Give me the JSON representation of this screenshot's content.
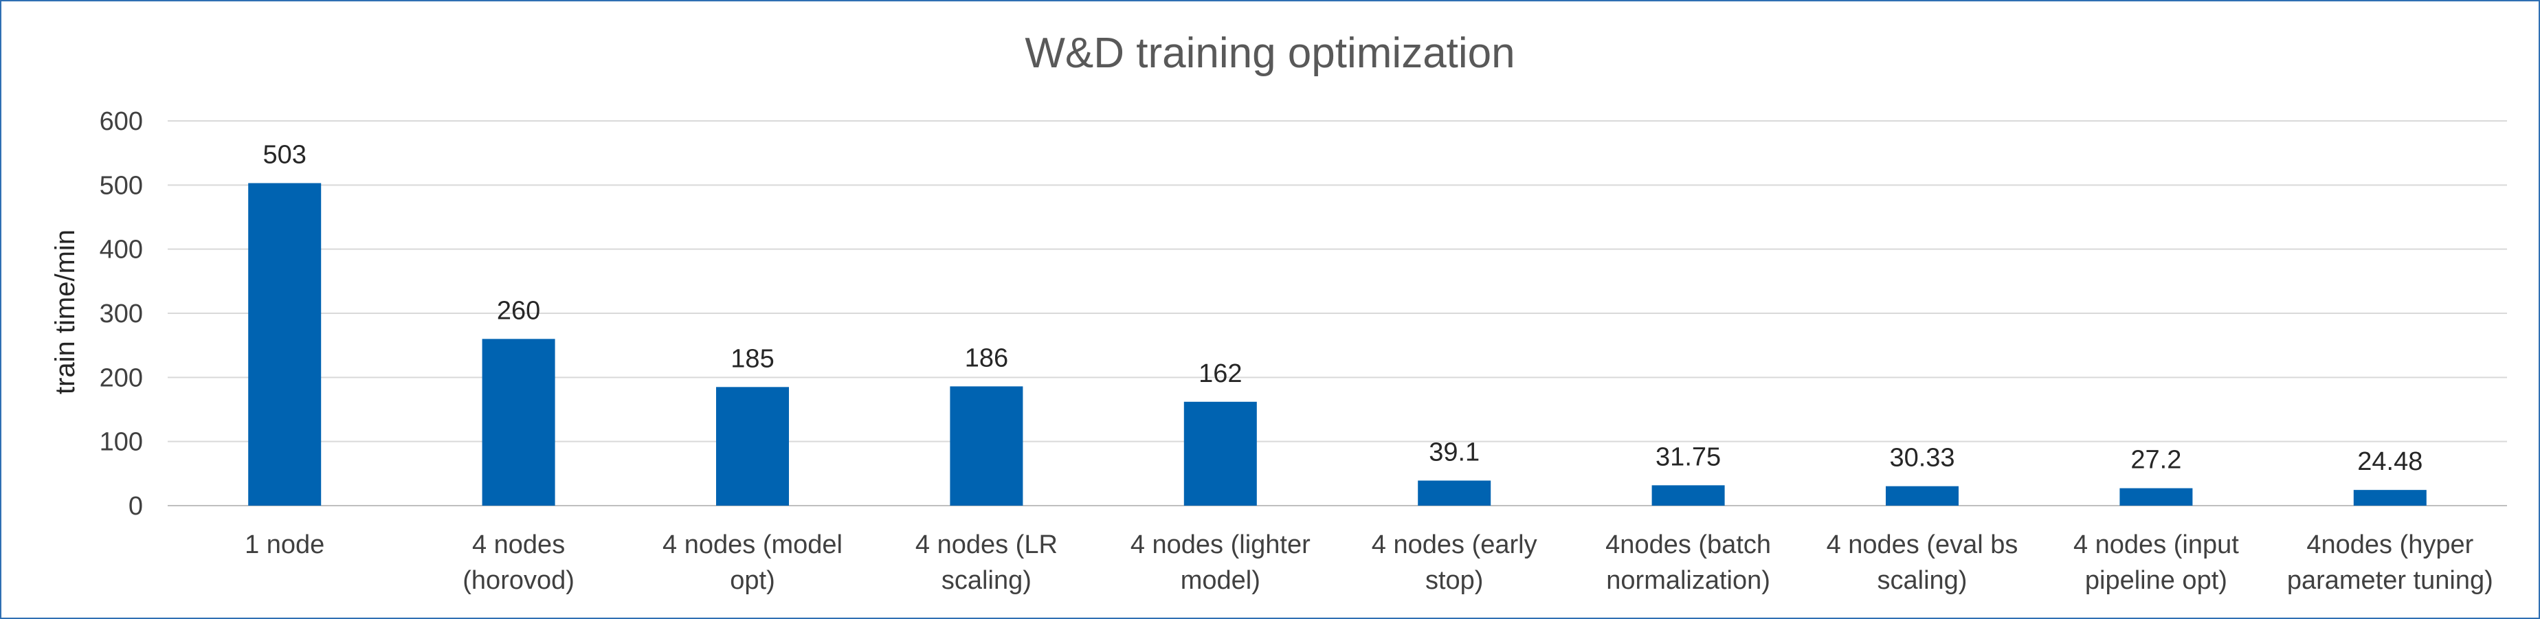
{
  "chart_data": {
    "type": "bar",
    "title": "W&D training optimization",
    "xlabel": "",
    "ylabel": "train time/min",
    "ylim": [
      0,
      600
    ],
    "yticks": [
      0,
      100,
      200,
      300,
      400,
      500,
      600
    ],
    "grid": true,
    "legend": "none",
    "bar_color": "#0063b1",
    "categories": [
      [
        "1 node"
      ],
      [
        "4 nodes",
        "(horovod)"
      ],
      [
        "4 nodes (model",
        "opt)"
      ],
      [
        "4 nodes (LR",
        "scaling)"
      ],
      [
        "4 nodes (lighter",
        "model)"
      ],
      [
        "4 nodes (early",
        "stop)"
      ],
      [
        "4nodes (batch",
        "normalization)"
      ],
      [
        "4 nodes (eval bs",
        "scaling)"
      ],
      [
        "4 nodes (input",
        "pipeline opt)"
      ],
      [
        "4nodes (hyper",
        "parameter tuning)"
      ]
    ],
    "values": [
      503,
      260,
      185,
      186,
      162,
      39.1,
      31.75,
      30.33,
      27.2,
      24.48
    ],
    "value_labels": [
      "503",
      "260",
      "185",
      "186",
      "162",
      "39.1",
      "31.75",
      "30.33",
      "27.2",
      "24.48"
    ]
  }
}
